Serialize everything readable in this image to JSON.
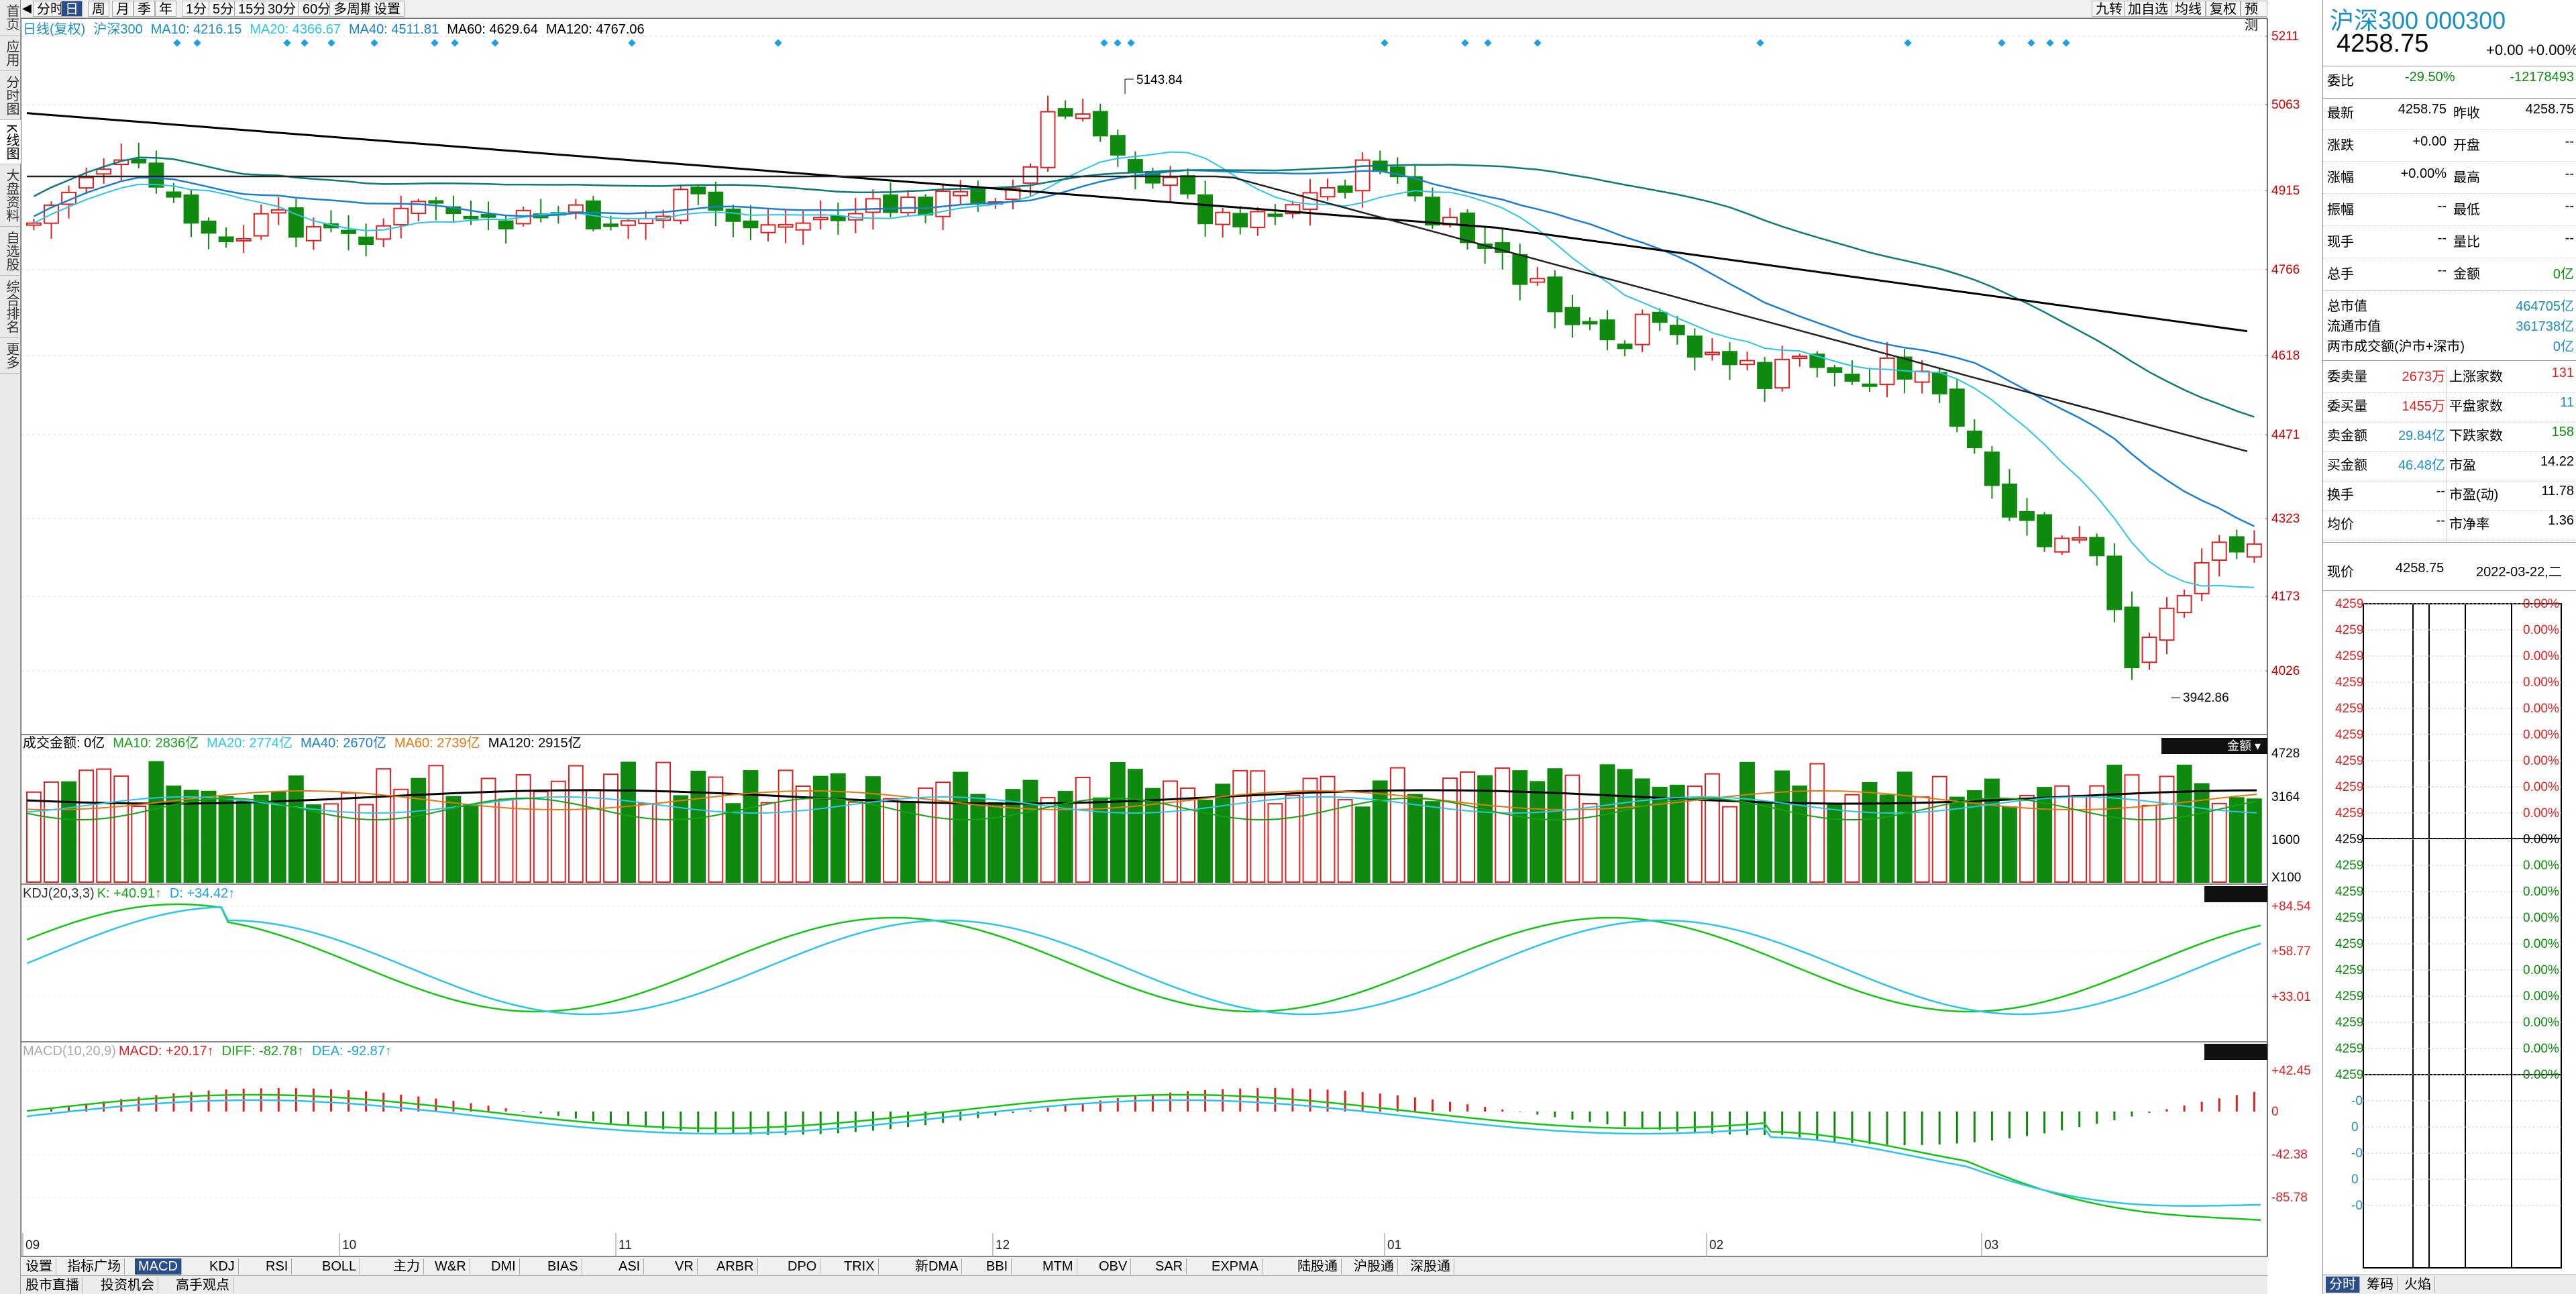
{
  "left_nav": [
    "首页",
    "应用",
    "分时图",
    "K线图",
    "大盘资料",
    "自选股",
    "综合排名",
    "更多"
  ],
  "top_toolbar": {
    "buttons": [
      "分时",
      "日",
      "周",
      "月",
      "季",
      "年",
      "1分",
      "5分",
      "15分",
      "30分",
      "60分",
      "多周期",
      "设置"
    ],
    "right_buttons": [
      "九转",
      "加自选",
      "均线",
      "复权",
      "预测"
    ]
  },
  "kline": {
    "legend": {
      "mode": "日线(复权)",
      "name": "沪深300",
      "ma10": "MA10: 4216.15",
      "ma20": "MA20: 4366.67",
      "ma40": "MA40: 4511.81",
      "ma60": "MA60: 4629.64",
      "ma120": "MA120: 4767.06"
    },
    "y_ticks": [
      "5211",
      "5063",
      "4915",
      "4766",
      "4618",
      "4471",
      "4323",
      "4173",
      "4026"
    ],
    "high_label": "5143.84",
    "low_label": "3942.86"
  },
  "volume": {
    "legend": {
      "title": "成交金额: 0亿",
      "ma10": "MA10: 2836亿",
      "ma20": "MA20: 2774亿",
      "ma40": "MA40: 2670亿",
      "ma60": "MA60: 2739亿",
      "ma120": "MA120: 2915亿"
    },
    "y_ticks": [
      "4728",
      "3164",
      "1600"
    ],
    "unit": "X100",
    "badge": "金额"
  },
  "kdj": {
    "legend": {
      "title": "KDJ(20,3,3)",
      "k": "K: +40.91↑",
      "d": "D: +34.42↑"
    },
    "y_ticks": [
      "+84.54",
      "+58.77",
      "+33.01"
    ]
  },
  "macd": {
    "legend": {
      "title": "MACD(10,20,9)",
      "macd": "MACD: +20.17↑",
      "diff": "DIFF: -82.78↑",
      "dea": "DEA: -92.87↑"
    },
    "y_ticks": [
      "+42.45",
      "0",
      "-42.38",
      "-85.78"
    ]
  },
  "x_ticks": [
    "09",
    "10",
    "11",
    "12",
    "01",
    "02",
    "03"
  ],
  "bottom_tabs": [
    "设置",
    "指标广场",
    "MACD",
    "KDJ",
    "RSI",
    "BOLL",
    "主力",
    "W&R",
    "DMI",
    "BIAS",
    "ASI",
    "VR",
    "ARBR",
    "DPO",
    "TRIX",
    "新DMA",
    "BBI",
    "MTM",
    "OBV",
    "SAR",
    "EXPMA",
    "陆股通",
    "沪股通",
    "深股通"
  ],
  "bottom_tabs2": [
    "股市直播",
    "投资机会",
    "高手观点"
  ],
  "right_panel": {
    "title": "沪深300 000300",
    "price": "4258.75",
    "change": "+0.00",
    "change_pct": "+0.00%",
    "weibi": {
      "label": "委比",
      "pct": "-29.50%",
      "val": "-12178493"
    },
    "quote_rows": [
      {
        "l": "最新",
        "v": "4258.75",
        "l2": "昨收",
        "v2": "4258.75"
      },
      {
        "l": "涨跌",
        "v": "+0.00",
        "l2": "开盘",
        "v2": "--"
      },
      {
        "l": "涨幅",
        "v": "+0.00%",
        "l2": "最高",
        "v2": "--"
      },
      {
        "l": "振幅",
        "v": "--",
        "l2": "最低",
        "v2": "--"
      },
      {
        "l": "现手",
        "v": "--",
        "l2": "量比",
        "v2": "--"
      },
      {
        "l": "总手",
        "v": "--",
        "l2": "金额",
        "v2": "0亿"
      }
    ],
    "mkt_rows": [
      {
        "l": "总市值",
        "v": "464705亿"
      },
      {
        "l": "流通市值",
        "v": "361738亿"
      },
      {
        "l": "两市成交额(沪市+深市)",
        "v": "0亿"
      }
    ],
    "order_rows": [
      {
        "l": "委卖量",
        "v": "2673万",
        "l2": "上涨家数",
        "v2": "131"
      },
      {
        "l": "委买量",
        "v": "1455万",
        "l2": "平盘家数",
        "v2": "11"
      },
      {
        "l": "卖金额",
        "v": "29.84亿",
        "l2": "下跌家数",
        "v2": "158"
      },
      {
        "l": "买金额",
        "v": "46.48亿",
        "l2": "市盈",
        "v2": "14.22"
      },
      {
        "l": "换手",
        "v": "--",
        "l2": "市盈(动)",
        "v2": "11.78"
      },
      {
        "l": "均价",
        "v": "--",
        "l2": "市净率",
        "v2": "1.36"
      }
    ],
    "now": {
      "label": "现价",
      "price": "4258.75",
      "date": "2022-03-22,二"
    },
    "depth_price": "4259",
    "depth_pct": "0.00%",
    "depth_zero": "0",
    "depth_neg": "-0",
    "bottom_tabs": [
      "分时",
      "筹码",
      "火焰"
    ]
  }
}
